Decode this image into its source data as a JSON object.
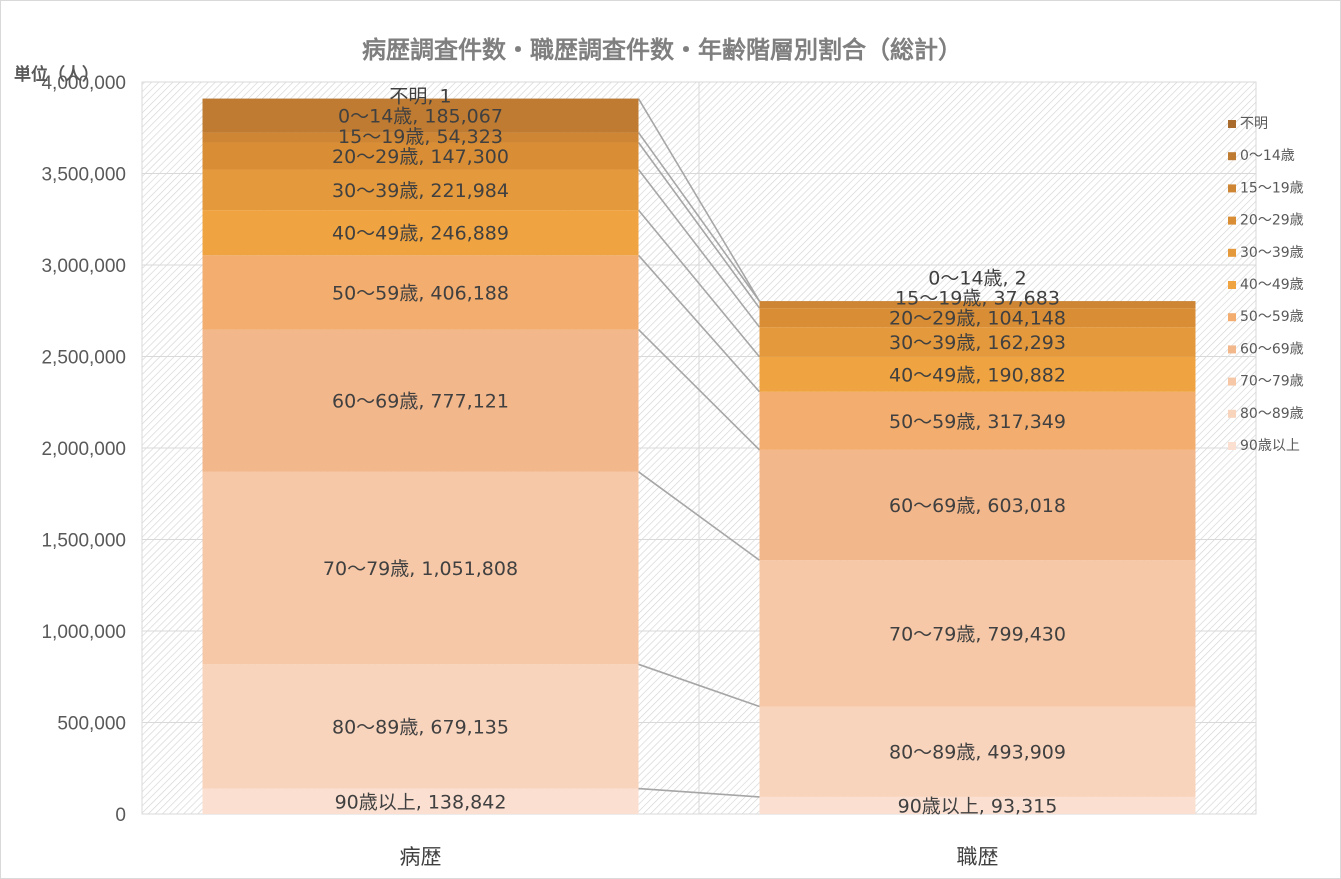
{
  "chart_data": {
    "type": "bar",
    "stacked": true,
    "title": "病歴調査件数・職歴調査件数・年齢階層別割合（総計）",
    "unit_label": "単位（人）",
    "categories": [
      "病歴",
      "職歴"
    ],
    "ylim": [
      0,
      4000000
    ],
    "yticks": [
      "0",
      "500,000",
      "1,000,000",
      "1,500,000",
      "2,000,000",
      "2,500,000",
      "3,000,000",
      "3,500,000",
      "4,000,000"
    ],
    "grid": true,
    "legend_position": "right",
    "series": [
      {
        "name": "90歳以上",
        "color": "#fbe0d2",
        "values": [
          138842,
          93315
        ],
        "labels": [
          "90歳以上, 138,842",
          "90歳以上, 93,315"
        ]
      },
      {
        "name": "80～89歳",
        "color": "#f9d4bd",
        "values": [
          679135,
          493909
        ],
        "labels": [
          "80～89歳, 679,135",
          "80～89歳, 493,909"
        ]
      },
      {
        "name": "70～79歳",
        "color": "#f6c8a7",
        "values": [
          1051808,
          799430
        ],
        "labels": [
          "70～79歳, 1,051,808",
          "70～79歳, 799,430"
        ]
      },
      {
        "name": "60～69歳",
        "color": "#f3b78c",
        "values": [
          777121,
          603018
        ],
        "labels": [
          "60～69歳, 777,121",
          "60～69歳, 603,018"
        ]
      },
      {
        "name": "50～59歳",
        "color": "#f2ad6f",
        "values": [
          406188,
          317349
        ],
        "labels": [
          "50～59歳, 406,188",
          "50～59歳, 317,349"
        ]
      },
      {
        "name": "40～49歳",
        "color": "#f0a441",
        "values": [
          246889,
          190882
        ],
        "labels": [
          "40～49歳, 246,889",
          "40～49歳, 190,882"
        ]
      },
      {
        "name": "30～39歳",
        "color": "#e4993c",
        "values": [
          221984,
          162293
        ],
        "labels": [
          "30～39歳, 221,984",
          "30～39歳, 162,293"
        ]
      },
      {
        "name": "20～29歳",
        "color": "#d98e36",
        "values": [
          147300,
          104148
        ],
        "labels": [
          "20～29歳, 147,300",
          "20～29歳, 104,148"
        ]
      },
      {
        "name": "15～19歳",
        "color": "#ce8634",
        "values": [
          54323,
          37683
        ],
        "labels": [
          "15～19歳, 54,323",
          "15～19歳, 37,683"
        ]
      },
      {
        "name": "0～14歳",
        "color": "#bf7b32",
        "values": [
          185067,
          2
        ],
        "labels": [
          "0～14歳, 185,067",
          "0～14歳, 2"
        ]
      },
      {
        "name": "不明",
        "color": "#a86b2c",
        "values": [
          1,
          0
        ],
        "labels": [
          "不明, 1",
          ""
        ]
      }
    ]
  }
}
